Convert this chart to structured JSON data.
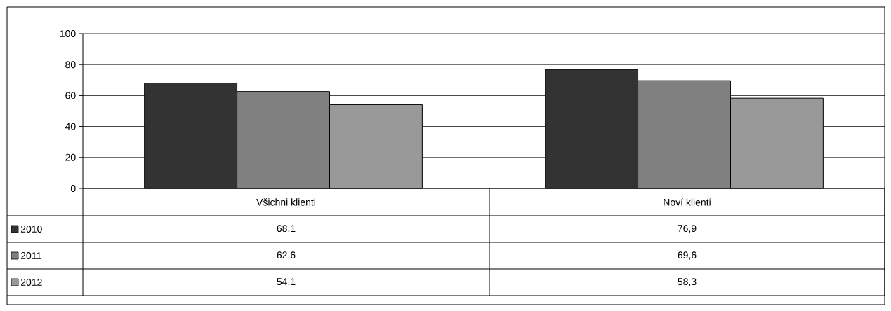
{
  "chart_data": {
    "type": "bar",
    "categories": [
      "Všichni klienti",
      "Noví klienti"
    ],
    "series": [
      {
        "name": "2010",
        "color": "#333333",
        "values": [
          68.1,
          76.9
        ],
        "value_labels": [
          "68,1",
          "76,9"
        ]
      },
      {
        "name": "2011",
        "color": "#808080",
        "values": [
          62.6,
          69.6
        ],
        "value_labels": [
          "62,6",
          "69,6"
        ]
      },
      {
        "name": "2012",
        "color": "#999999",
        "values": [
          54.1,
          58.3
        ],
        "value_labels": [
          "54,1",
          "58,3"
        ]
      }
    ],
    "ylim": [
      0,
      100
    ],
    "yticks": [
      0,
      20,
      40,
      60,
      80,
      100
    ],
    "grid": "y",
    "legend": "bottom left"
  }
}
